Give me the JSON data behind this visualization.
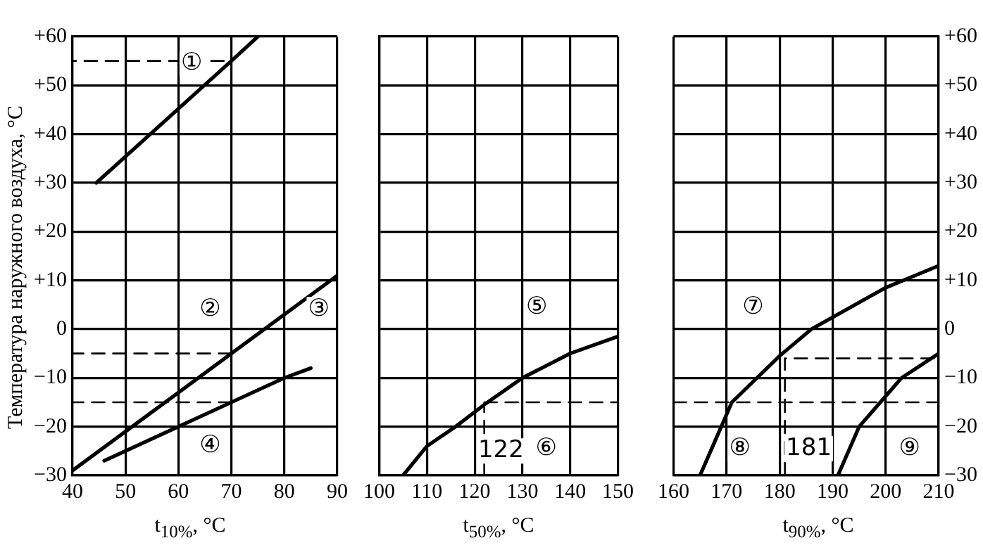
{
  "chart_data": [
    {
      "type": "line",
      "xlabel": "t$_{10%}$, °C",
      "ylabel": "Температура наружного воздуха, °С",
      "xlim": [
        40,
        90
      ],
      "xticks": [
        40,
        50,
        60,
        70,
        80,
        90
      ],
      "ylim": [
        -30,
        60
      ],
      "yticks": [
        {
          "value": -30,
          "label": "−30"
        },
        {
          "value": -20,
          "label": "−20"
        },
        {
          "value": -10,
          "label": "−10"
        },
        0,
        {
          "value": 10,
          "label": "+10"
        },
        {
          "value": 20,
          "label": "+20"
        },
        {
          "value": 30,
          "label": "+30"
        },
        {
          "value": 40,
          "label": "+40"
        },
        {
          "value": 50,
          "label": "+50"
        },
        {
          "value": 60,
          "label": "+60"
        }
      ],
      "grid": true,
      "legend": false,
      "marker": "none",
      "series": [
        {
          "color": "#000000",
          "x": [
            44.5,
            70,
            75
          ],
          "values": [
            30,
            55,
            60
          ]
        },
        {
          "color": "#000000",
          "x": [
            40,
            50,
            70,
            90
          ],
          "values": [
            -29,
            -21,
            -5,
            11
          ]
        },
        {
          "color": "#000000",
          "x": [
            46,
            60,
            70,
            80,
            85
          ],
          "values": [
            -27,
            -20,
            -15,
            -10,
            -8
          ]
        },
        {
          "color": "#000000",
          "line_style": "dashed",
          "x": [
            70,
            70,
            40
          ],
          "values": [
            -30,
            55,
            55
          ]
        },
        {
          "color": "#000000",
          "line_style": "dashed",
          "x": [
            70,
            40
          ],
          "values": [
            -5,
            -5
          ]
        },
        {
          "color": "#000000",
          "line_style": "dashed",
          "x": [
            70,
            40
          ],
          "values": [
            -15,
            -15
          ]
        }
      ],
      "annotations": [
        {
          "text": "①",
          "x": 62.5,
          "y": 54.5
        },
        {
          "text": "②",
          "x": 66,
          "y": 4
        },
        {
          "text": "③",
          "x": 86.5,
          "y": 4
        },
        {
          "text": "④",
          "x": 66,
          "y": -24
        }
      ]
    },
    {
      "type": "line",
      "xlabel": "t$_{50%}$, °C",
      "tick_labels": "x",
      "xlim": [
        100,
        150
      ],
      "xticks": [
        100,
        110,
        120,
        130,
        140,
        150
      ],
      "ylim": [
        -30,
        60
      ],
      "yticks": [
        -30,
        -20,
        -10,
        0,
        10,
        20,
        30,
        40,
        50,
        60
      ],
      "grid": true,
      "legend": false,
      "marker": "none",
      "series": [
        {
          "color": "#000000",
          "x": [
            105,
            110,
            116,
            122,
            130,
            140,
            150
          ],
          "values": [
            -30,
            -24,
            -20,
            -15.5,
            -10,
            -5,
            -1.5
          ]
        },
        {
          "color": "#000000",
          "line_style": "dashed",
          "x": [
            122,
            122
          ],
          "values": [
            -30,
            -15.5
          ]
        },
        {
          "color": "#000000",
          "line_style": "dashed",
          "x": [
            122,
            150
          ],
          "values": [
            -15,
            -15
          ]
        }
      ],
      "annotations": [
        {
          "text": "122",
          "x": 125.5,
          "y": -25
        },
        {
          "text": "⑤",
          "x": 133,
          "y": 4.5
        },
        {
          "text": "⑥",
          "x": 135,
          "y": -24.5
        }
      ]
    },
    {
      "type": "line",
      "xlabel": "t$_{90%}$, °C",
      "xlim": [
        160,
        210
      ],
      "xticks": [
        160,
        170,
        180,
        190,
        200,
        210
      ],
      "y2lim": [
        -30,
        60
      ],
      "y2ticks": [
        {
          "value": -30,
          "label": "−30"
        },
        {
          "value": -20,
          "label": "−20"
        },
        {
          "value": -10,
          "label": "−10"
        },
        0,
        {
          "value": 10,
          "label": "+10"
        },
        {
          "value": 20,
          "label": "+20"
        },
        {
          "value": 30,
          "label": "+30"
        },
        {
          "value": 40,
          "label": "+40"
        },
        {
          "value": 50,
          "label": "+50"
        },
        {
          "value": 60,
          "label": "+60"
        }
      ],
      "grid": true,
      "legend": false,
      "marker": "none",
      "series": [
        {
          "color": "#000000",
          "axis": "y2",
          "x": [
            165,
            169,
            171,
            180,
            186,
            200,
            210
          ],
          "values": [
            -30,
            -20,
            -15,
            -5.5,
            0,
            8.5,
            13
          ]
        },
        {
          "color": "#000000",
          "axis": "y2",
          "x": [
            191,
            195,
            199,
            203,
            210
          ],
          "values": [
            -30,
            -20,
            -15,
            -10,
            -5
          ]
        },
        {
          "color": "#000000",
          "axis": "y2",
          "line_style": "dashed",
          "x": [
            181,
            181,
            210
          ],
          "values": [
            -30,
            -6,
            -6
          ]
        },
        {
          "color": "#000000",
          "axis": "y2",
          "line_style": "dashed",
          "x": [
            160,
            210
          ],
          "values": [
            -15,
            -15
          ]
        }
      ],
      "annotations": [
        "⑦",
        "⑧",
        "181",
        "⑨"
      ]
    }
  ]
}
